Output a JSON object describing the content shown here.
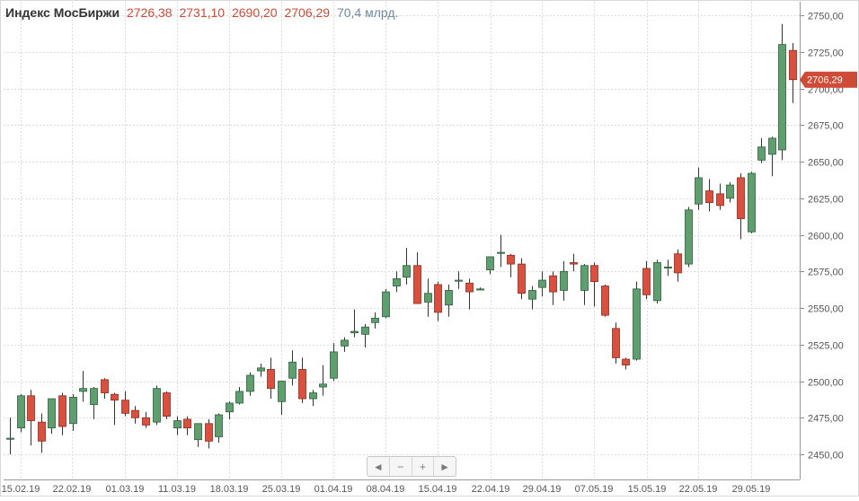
{
  "header": {
    "title": "Индекс МосБиржи",
    "open": "2726,38",
    "high": "2731,10",
    "low": "2690,20",
    "close": "2706,29",
    "volume": "70,4 млрд."
  },
  "colors": {
    "up": "#5e9e6f",
    "down": "#d9503e",
    "label_red": "#cf4a37",
    "volume_blue": "#6e87a6"
  },
  "nav_buttons": [
    {
      "name": "scroll-left-button",
      "glyph": "◄"
    },
    {
      "name": "zoom-out-button",
      "glyph": "−"
    },
    {
      "name": "zoom-in-button",
      "glyph": "+"
    },
    {
      "name": "scroll-right-button",
      "glyph": "►"
    }
  ],
  "chart_data": {
    "type": "candlestick",
    "ylim": [
      2440,
      2755
    ],
    "y_ticks": [
      "2450,00",
      "2475,00",
      "2500,00",
      "2525,00",
      "2550,00",
      "2575,00",
      "2600,00",
      "2625,00",
      "2650,00",
      "2675,00",
      "2700,00",
      "2725,00",
      "2750,00"
    ],
    "x_tick_labels": [
      "15.02.19",
      "22.02.19",
      "01.03.19",
      "11.03.19",
      "18.03.19",
      "25.03.19",
      "01.04.19",
      "08.04.19",
      "15.04.19",
      "22.04.19",
      "29.04.19",
      "07.05.19",
      "15.05.19",
      "22.05.19",
      "29.05.19"
    ],
    "last_price_label": "2706,29",
    "grid": true,
    "candles": [
      {
        "o": 2461,
        "h": 2475,
        "l": 2450,
        "c": 2461
      },
      {
        "o": 2468,
        "h": 2491,
        "l": 2465,
        "c": 2490
      },
      {
        "o": 2490,
        "h": 2494,
        "l": 2456,
        "c": 2473
      },
      {
        "o": 2472,
        "h": 2478,
        "l": 2451,
        "c": 2459
      },
      {
        "o": 2468,
        "h": 2488,
        "l": 2464,
        "c": 2488
      },
      {
        "o": 2490,
        "h": 2492,
        "l": 2463,
        "c": 2469
      },
      {
        "o": 2471,
        "h": 2491,
        "l": 2466,
        "c": 2489
      },
      {
        "o": 2493,
        "h": 2507,
        "l": 2486,
        "c": 2495
      },
      {
        "o": 2484,
        "h": 2496,
        "l": 2474,
        "c": 2495
      },
      {
        "o": 2501,
        "h": 2502,
        "l": 2488,
        "c": 2492
      },
      {
        "o": 2491,
        "h": 2492,
        "l": 2470,
        "c": 2487
      },
      {
        "o": 2487,
        "h": 2493,
        "l": 2476,
        "c": 2478
      },
      {
        "o": 2480,
        "h": 2483,
        "l": 2471,
        "c": 2475
      },
      {
        "o": 2475,
        "h": 2479,
        "l": 2468,
        "c": 2470
      },
      {
        "o": 2472,
        "h": 2497,
        "l": 2470,
        "c": 2495
      },
      {
        "o": 2492,
        "h": 2493,
        "l": 2474,
        "c": 2476
      },
      {
        "o": 2468,
        "h": 2476,
        "l": 2463,
        "c": 2473
      },
      {
        "o": 2474,
        "h": 2476,
        "l": 2463,
        "c": 2468
      },
      {
        "o": 2460,
        "h": 2471,
        "l": 2455,
        "c": 2471
      },
      {
        "o": 2471,
        "h": 2474,
        "l": 2454,
        "c": 2459
      },
      {
        "o": 2462,
        "h": 2478,
        "l": 2458,
        "c": 2477
      },
      {
        "o": 2479,
        "h": 2486,
        "l": 2474,
        "c": 2485
      },
      {
        "o": 2485,
        "h": 2496,
        "l": 2484,
        "c": 2493
      },
      {
        "o": 2493,
        "h": 2506,
        "l": 2490,
        "c": 2504
      },
      {
        "o": 2507,
        "h": 2512,
        "l": 2503,
        "c": 2509
      },
      {
        "o": 2508,
        "h": 2516,
        "l": 2488,
        "c": 2495
      },
      {
        "o": 2486,
        "h": 2499,
        "l": 2477,
        "c": 2500
      },
      {
        "o": 2502,
        "h": 2521,
        "l": 2497,
        "c": 2513
      },
      {
        "o": 2508,
        "h": 2516,
        "l": 2485,
        "c": 2488
      },
      {
        "o": 2488,
        "h": 2494,
        "l": 2483,
        "c": 2492
      },
      {
        "o": 2496,
        "h": 2511,
        "l": 2490,
        "c": 2498
      },
      {
        "o": 2502,
        "h": 2526,
        "l": 2500,
        "c": 2520
      },
      {
        "o": 2524,
        "h": 2530,
        "l": 2520,
        "c": 2528
      },
      {
        "o": 2533,
        "h": 2549,
        "l": 2530,
        "c": 2534
      },
      {
        "o": 2532,
        "h": 2539,
        "l": 2523,
        "c": 2537
      },
      {
        "o": 2540,
        "h": 2547,
        "l": 2536,
        "c": 2543
      },
      {
        "o": 2544,
        "h": 2563,
        "l": 2543,
        "c": 2561
      },
      {
        "o": 2565,
        "h": 2575,
        "l": 2561,
        "c": 2570
      },
      {
        "o": 2571,
        "h": 2591,
        "l": 2566,
        "c": 2579
      },
      {
        "o": 2579,
        "h": 2588,
        "l": 2554,
        "c": 2553
      },
      {
        "o": 2554,
        "h": 2570,
        "l": 2544,
        "c": 2560
      },
      {
        "o": 2566,
        "h": 2568,
        "l": 2541,
        "c": 2547
      },
      {
        "o": 2552,
        "h": 2566,
        "l": 2544,
        "c": 2562
      },
      {
        "o": 2569,
        "h": 2575,
        "l": 2563,
        "c": 2569
      },
      {
        "o": 2567,
        "h": 2570,
        "l": 2549,
        "c": 2561
      },
      {
        "o": 2563,
        "h": 2564,
        "l": 2562,
        "c": 2563
      },
      {
        "o": 2576,
        "h": 2584,
        "l": 2573,
        "c": 2585
      },
      {
        "o": 2588,
        "h": 2600,
        "l": 2578,
        "c": 2588
      },
      {
        "o": 2586,
        "h": 2587,
        "l": 2571,
        "c": 2580
      },
      {
        "o": 2580,
        "h": 2584,
        "l": 2556,
        "c": 2560
      },
      {
        "o": 2556,
        "h": 2565,
        "l": 2549,
        "c": 2562
      },
      {
        "o": 2564,
        "h": 2575,
        "l": 2558,
        "c": 2569
      },
      {
        "o": 2572,
        "h": 2575,
        "l": 2552,
        "c": 2561
      },
      {
        "o": 2562,
        "h": 2582,
        "l": 2555,
        "c": 2575
      },
      {
        "o": 2581,
        "h": 2587,
        "l": 2575,
        "c": 2580
      },
      {
        "o": 2562,
        "h": 2580,
        "l": 2552,
        "c": 2579
      },
      {
        "o": 2579,
        "h": 2581,
        "l": 2551,
        "c": 2568
      },
      {
        "o": 2565,
        "h": 2566,
        "l": 2544,
        "c": 2545
      },
      {
        "o": 2536,
        "h": 2540,
        "l": 2512,
        "c": 2516
      },
      {
        "o": 2515,
        "h": 2516,
        "l": 2508,
        "c": 2511
      },
      {
        "o": 2515,
        "h": 2568,
        "l": 2514,
        "c": 2563
      },
      {
        "o": 2577,
        "h": 2582,
        "l": 2556,
        "c": 2559
      },
      {
        "o": 2555,
        "h": 2583,
        "l": 2553,
        "c": 2581
      },
      {
        "o": 2578,
        "h": 2583,
        "l": 2572,
        "c": 2578
      },
      {
        "o": 2587,
        "h": 2590,
        "l": 2568,
        "c": 2574
      },
      {
        "o": 2580,
        "h": 2619,
        "l": 2578,
        "c": 2617
      },
      {
        "o": 2621,
        "h": 2646,
        "l": 2617,
        "c": 2639
      },
      {
        "o": 2630,
        "h": 2638,
        "l": 2616,
        "c": 2622
      },
      {
        "o": 2628,
        "h": 2635,
        "l": 2617,
        "c": 2620
      },
      {
        "o": 2625,
        "h": 2636,
        "l": 2622,
        "c": 2634
      },
      {
        "o": 2639,
        "h": 2642,
        "l": 2597,
        "c": 2611
      },
      {
        "o": 2602,
        "h": 2643,
        "l": 2601,
        "c": 2642
      },
      {
        "o": 2651,
        "h": 2666,
        "l": 2649,
        "c": 2660
      },
      {
        "o": 2655,
        "h": 2667,
        "l": 2640,
        "c": 2666
      },
      {
        "o": 2658,
        "h": 2744,
        "l": 2651,
        "c": 2730
      },
      {
        "o": 2726,
        "h": 2731,
        "l": 2690,
        "c": 2706
      }
    ]
  }
}
